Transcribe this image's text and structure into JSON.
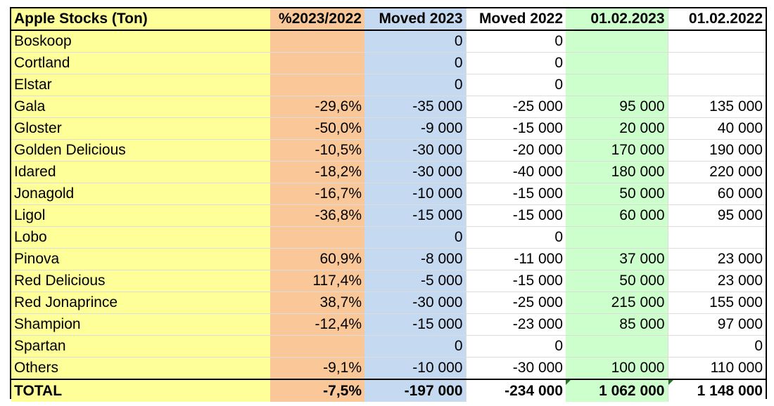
{
  "table": {
    "headers": [
      "Apple Stocks (Ton)",
      "%2023/2022",
      "Moved 2023",
      "Moved 2022",
      "01.02.2023",
      "01.02.2022"
    ],
    "rows": [
      [
        "Boskoop",
        "",
        "0",
        "0",
        "",
        ""
      ],
      [
        "Cortland",
        "",
        "0",
        "0",
        "",
        ""
      ],
      [
        "Elstar",
        "",
        "0",
        "0",
        "",
        ""
      ],
      [
        "Gala",
        "-29,6%",
        "-35 000",
        "-25 000",
        "95 000",
        "135 000"
      ],
      [
        "Gloster",
        "-50,0%",
        "-9 000",
        "-15 000",
        "20 000",
        "40 000"
      ],
      [
        "Golden Delicious",
        "-10,5%",
        "-30 000",
        "-20 000",
        "170 000",
        "190 000"
      ],
      [
        "Idared",
        "-18,2%",
        "-30 000",
        "-40 000",
        "180 000",
        "220 000"
      ],
      [
        "Jonagold",
        "-16,7%",
        "-10 000",
        "-15 000",
        "50 000",
        "60 000"
      ],
      [
        "Ligol",
        "-36,8%",
        "-15 000",
        "-15 000",
        "60 000",
        "95 000"
      ],
      [
        "Lobo",
        "",
        "0",
        "0",
        "",
        ""
      ],
      [
        "Pinova",
        "60,9%",
        "-8 000",
        "-11 000",
        "37 000",
        "23 000"
      ],
      [
        "Red Delicious",
        "117,4%",
        "-5 000",
        "-15 000",
        "50 000",
        "23 000"
      ],
      [
        "Red Jonaprince",
        "38,7%",
        "-30 000",
        "-25 000",
        "215 000",
        "155 000"
      ],
      [
        "Shampion",
        "-12,4%",
        "-15 000",
        "-23 000",
        "85 000",
        "97 000"
      ],
      [
        "Spartan",
        "",
        "0",
        "0",
        "",
        "0"
      ],
      [
        "Others",
        "-9,1%",
        "-10 000",
        "-30 000",
        "100 000",
        "110 000"
      ]
    ],
    "total": [
      "TOTAL",
      "-7,5%",
      "-197 000",
      "-234 000",
      "1 062 000",
      "1 148 000"
    ]
  },
  "colors": {
    "name_column": "#ffff99",
    "percent_column": "#fac898",
    "moved_2023_column": "#c5d9f1",
    "stock_2023_column": "#ccffcc"
  }
}
